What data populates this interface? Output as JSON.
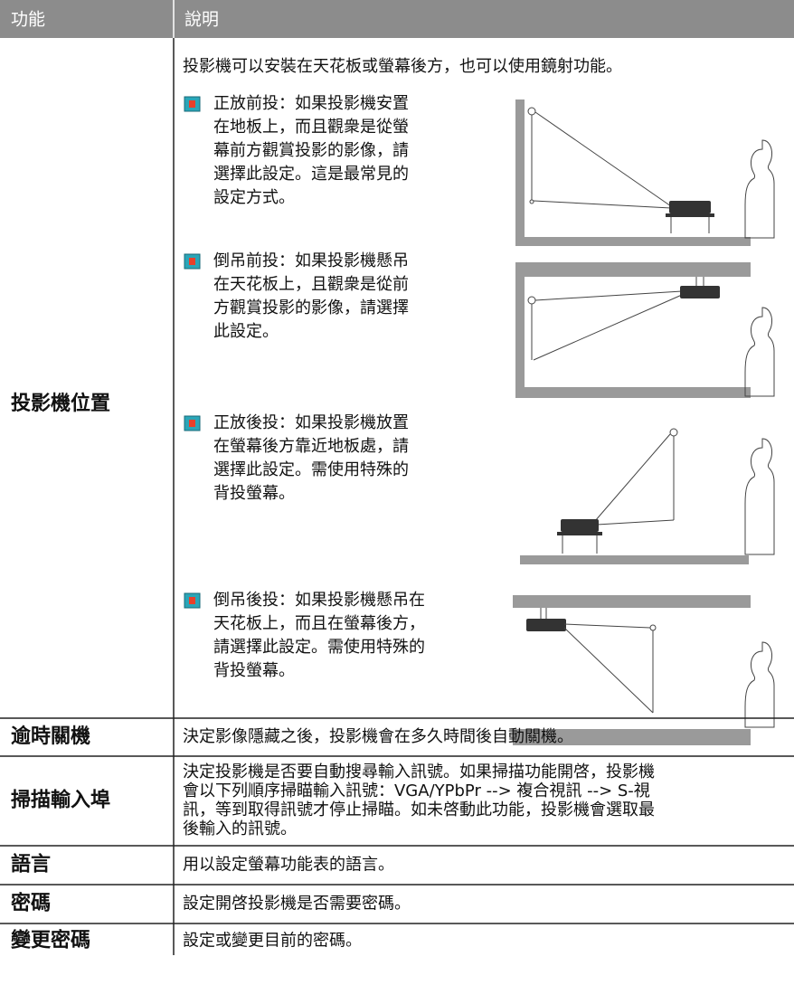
{
  "header": {
    "col1": "功能",
    "col2": "說明"
  },
  "rows": [
    {
      "label": "投影機位置",
      "intro": "投影機可以安裝在天花板或螢幕後方，也可以使用鏡射功能。",
      "options": [
        {
          "lines": [
            "正放前投：如果投影機安置",
            "在地板上，而且觀衆是從螢",
            "幕前方觀賞投影的影像，請",
            "選擇此設定。這是最常見的",
            "設定方式。"
          ]
        },
        {
          "lines": [
            "倒吊前投：如果投影機懸吊",
            "在天花板上，且觀衆是從前",
            "方觀賞投影的影像，請選擇",
            "此設定。"
          ]
        },
        {
          "lines": [
            "正放後投：如果投影機放置",
            "在螢幕後方靠近地板處，請",
            "選擇此設定。需使用特殊的",
            "背投螢幕。"
          ]
        },
        {
          "lines": [
            "倒吊後投：如果投影機懸吊在",
            "天花板上，而且在螢幕後方，",
            "請選擇此設定。需使用特殊的",
            "背投螢幕。"
          ]
        }
      ]
    },
    {
      "label": "逾時關機",
      "lines": [
        "決定影像隱藏之後，投影機會在多久時間後自動關機。"
      ]
    },
    {
      "label": "掃描輸入埠",
      "lines": [
        "決定投影機是否要自動搜尋輸入訊號。如果掃描功能開啓，投影機",
        "會以下列順序掃瞄輸入訊號：VGA/YPbPr --> 複合視訊 --> S-視",
        "訊，等到取得訊號才停止掃瞄。如未啓動此功能，投影機會選取最",
        "後輸入的訊號。"
      ]
    },
    {
      "label": "語言",
      "lines": [
        "用以設定螢幕功能表的語言。"
      ]
    },
    {
      "label": "密碼",
      "lines": [
        "設定開啓投影機是否需要密碼。"
      ]
    },
    {
      "label": "變更密碼",
      "lines": [
        "設定或變更目前的密碼。"
      ]
    }
  ]
}
